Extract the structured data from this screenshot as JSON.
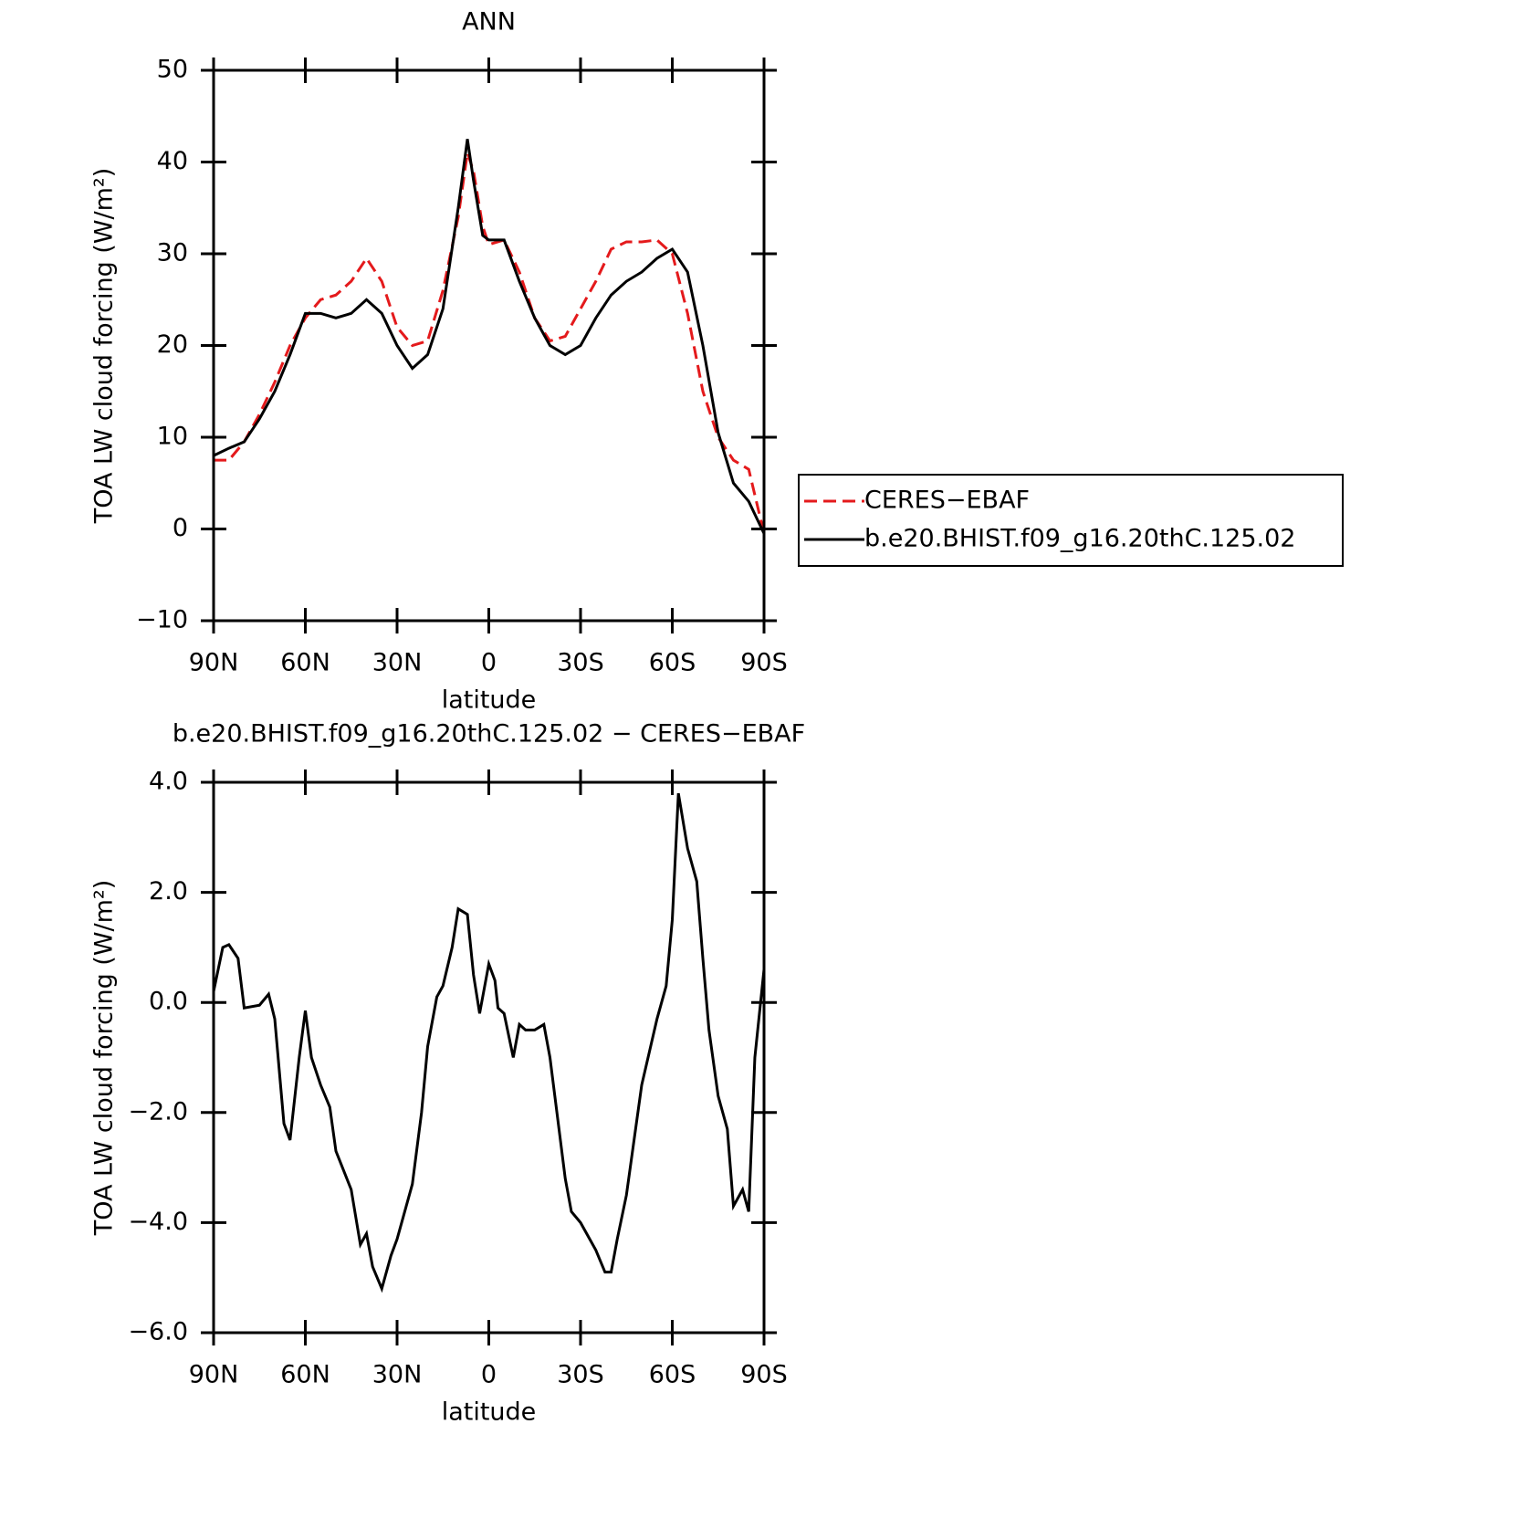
{
  "chart_data": [
    {
      "type": "line",
      "title": "ANN",
      "xlabel": "latitude",
      "ylabel": "TOA LW cloud forcing (W/m²)",
      "xlim": [
        90,
        -90
      ],
      "xticks": [
        {
          "value": 90,
          "label": "90N"
        },
        {
          "value": 60,
          "label": "60N"
        },
        {
          "value": 30,
          "label": "30N"
        },
        0,
        {
          "value": -30,
          "label": "30S"
        },
        {
          "value": -60,
          "label": "60S"
        },
        {
          "value": -90,
          "label": "90S"
        }
      ],
      "ylim": [
        -10,
        50
      ],
      "yticks": [
        {
          "value": -10,
          "label": "−10"
        },
        0,
        10,
        20,
        30,
        40,
        50
      ],
      "legend": "outside-right",
      "x": [
        90,
        85,
        80,
        75,
        70,
        65,
        60,
        55,
        50,
        45,
        40,
        35,
        30,
        25,
        20,
        15,
        10,
        7,
        5,
        2,
        0,
        -5,
        -10,
        -15,
        -20,
        -25,
        -30,
        -35,
        -40,
        -45,
        -50,
        -55,
        -60,
        -65,
        -70,
        -75,
        -80,
        -85,
        -90
      ],
      "series": [
        {
          "name": "CERES−EBAF",
          "color": "#e41a1c",
          "style": "dashed",
          "values": [
            7.5,
            7.5,
            9.5,
            12.5,
            16,
            20,
            23,
            25,
            25.5,
            27,
            29.5,
            27,
            22,
            20,
            20.5,
            26,
            34,
            41,
            39,
            33,
            31,
            31.5,
            28,
            23,
            20.5,
            21,
            24,
            27,
            30.5,
            31.3,
            31.3,
            31.5,
            30,
            23.5,
            15,
            10,
            7.5,
            6.5,
            -0.5
          ]
        },
        {
          "name": "b.e20.BHIST.f09_g16.20thC.125.02",
          "color": "#000000",
          "style": "solid",
          "values": [
            8,
            8.8,
            9.5,
            12,
            15,
            19,
            23.5,
            23.5,
            23,
            23.5,
            25,
            23.5,
            20,
            17.5,
            19,
            24,
            35,
            42.5,
            38,
            32,
            31.5,
            31.5,
            27,
            23,
            20,
            19,
            20,
            23,
            25.5,
            27,
            28,
            29.5,
            30.5,
            28,
            20,
            10.5,
            5,
            3,
            -0.5
          ]
        }
      ]
    },
    {
      "type": "line",
      "title": "b.e20.BHIST.f09_g16.20thC.125.02 − CERES−EBAF",
      "xlabel": "latitude",
      "ylabel": "TOA LW cloud forcing (W/m²)",
      "xlim": [
        90,
        -90
      ],
      "xticks": [
        {
          "value": 90,
          "label": "90N"
        },
        {
          "value": 60,
          "label": "60N"
        },
        {
          "value": 30,
          "label": "30N"
        },
        0,
        {
          "value": -30,
          "label": "30S"
        },
        {
          "value": -60,
          "label": "60S"
        },
        {
          "value": -90,
          "label": "90S"
        }
      ],
      "ylim": [
        -6,
        4
      ],
      "yticks": [
        {
          "value": -6,
          "label": "−6.0"
        },
        {
          "value": -4,
          "label": "−4.0"
        },
        {
          "value": -2,
          "label": "−2.0"
        },
        {
          "value": 0,
          "label": "0.0"
        },
        {
          "value": 2,
          "label": "2.0"
        },
        {
          "value": 4,
          "label": "4.0"
        }
      ],
      "x": [
        90,
        87,
        85,
        82,
        80,
        75,
        72,
        70,
        67,
        65,
        62,
        60,
        58,
        55,
        52,
        50,
        45,
        42,
        40,
        38,
        35,
        32,
        30,
        27,
        25,
        22,
        20,
        17,
        15,
        12,
        10,
        7,
        5,
        3,
        0,
        -2,
        -3,
        -5,
        -8,
        -10,
        -12,
        -15,
        -18,
        -20,
        -25,
        -27,
        -30,
        -35,
        -38,
        -40,
        -42,
        -45,
        -48,
        -50,
        -55,
        -58,
        -60,
        -62,
        -65,
        -68,
        -70,
        -72,
        -75,
        -78,
        -80,
        -83,
        -85,
        -87,
        -90
      ],
      "series": [
        {
          "color": "#000000",
          "style": "solid",
          "values": [
            0.2,
            1.0,
            1.05,
            0.8,
            -0.1,
            -0.05,
            0.15,
            -0.3,
            -2.2,
            -2.5,
            -1.0,
            -0.15,
            -1.0,
            -1.5,
            -1.9,
            -2.7,
            -3.4,
            -4.4,
            -4.2,
            -4.8,
            -5.2,
            -4.6,
            -4.3,
            -3.7,
            -3.3,
            -2.0,
            -0.8,
            0.1,
            0.3,
            1.0,
            1.7,
            1.6,
            0.5,
            -0.2,
            0.7,
            0.4,
            -0.1,
            -0.2,
            -1.0,
            -0.4,
            -0.5,
            -0.5,
            -0.4,
            -1.0,
            -3.2,
            -3.8,
            -4.0,
            -4.5,
            -4.9,
            -4.9,
            -4.3,
            -3.5,
            -2.3,
            -1.5,
            -0.3,
            0.3,
            1.5,
            3.8,
            2.8,
            2.2,
            0.8,
            -0.5,
            -1.7,
            -2.3,
            -3.7,
            -3.4,
            -3.8,
            -1.0,
            0.6
          ]
        }
      ]
    }
  ]
}
